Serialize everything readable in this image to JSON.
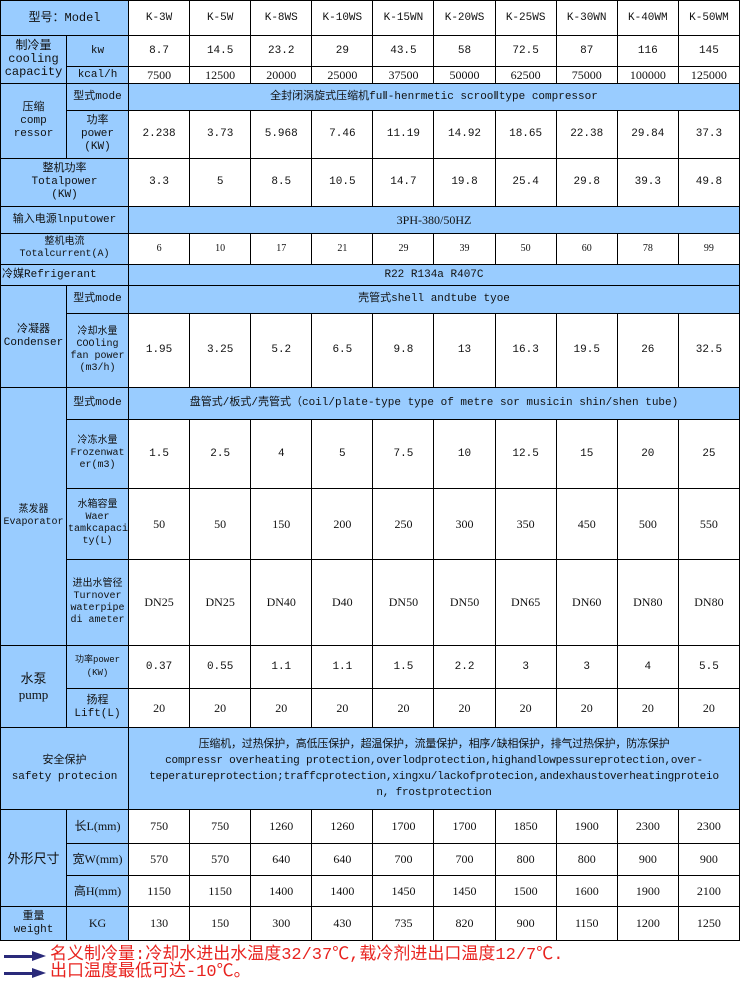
{
  "header": {
    "model_label": "型号：Model",
    "models": [
      "K-3W",
      "K-5W",
      "K-8WS",
      "K-10WS",
      "K-15WN",
      "K-20WS",
      "K-25WS",
      "K-30WN",
      "K-40WM",
      "K-50WM"
    ]
  },
  "cooling": {
    "label_cn": "制冷量",
    "label_en1": "cooling",
    "label_en2": "capacity",
    "kw_label": "kw",
    "kw": [
      "8.7",
      "14.5",
      "23.2",
      "29",
      "43.5",
      "58",
      "72.5",
      "87",
      "116",
      "145"
    ],
    "kcal_label": "kcal/h",
    "kcal": [
      "7500",
      "12500",
      "20000",
      "25000",
      "37500",
      "50000",
      "62500",
      "75000",
      "100000",
      "125000"
    ]
  },
  "compressor": {
    "label_cn": "压缩",
    "label_en1": "comp",
    "label_en2": "ressor",
    "mode_label": "型式mode",
    "mode_value": "全封闭涡旋式压缩机fuⅡ-henrmetic scrooⅡtype compressor",
    "power_label1": "功率",
    "power_label2": "power",
    "power_label3": "(KW)",
    "power": [
      "2.238",
      "3.73",
      "5.968",
      "7.46",
      "11.19",
      "14.92",
      "18.65",
      "22.38",
      "29.84",
      "37.3"
    ]
  },
  "total_power": {
    "label1": "整机功率",
    "label2": "Totalpower",
    "label3": "(KW)",
    "values": [
      "3.3",
      "5",
      "8.5",
      "10.5",
      "14.7",
      "19.8",
      "25.4",
      "29.8",
      "39.3",
      "49.8"
    ]
  },
  "input_power": {
    "label": "输入电源lnputower",
    "value": "3PH-380/50HZ"
  },
  "total_current": {
    "label1": "整机电流",
    "label2": "Totalcurrent(A)",
    "values": [
      "6",
      "10",
      "17",
      "21",
      "29",
      "39",
      "50",
      "60",
      "78",
      "99"
    ]
  },
  "refrigerant": {
    "label": "冷媒Refrigerant",
    "value": "R22 R134a R407C"
  },
  "condenser": {
    "label_cn": "冷凝器",
    "label_en": "Condenser",
    "mode_label": "型式mode",
    "mode_value": "壳管式shell andtube tyoe",
    "water_label1": "冷却水量",
    "water_label2": "COOling",
    "water_label3": "fan power",
    "water_label4": "(m3/h)",
    "water": [
      "1.95",
      "3.25",
      "5.2",
      "6.5",
      "9.8",
      "13",
      "16.3",
      "19.5",
      "26",
      "32.5"
    ]
  },
  "evaporator": {
    "label_cn": "蒸发器",
    "label_en": "Evaporator",
    "mode_label": "型式mode",
    "mode_value": "盘管式/板式/壳管式（coil/plate-type type of metre sor musicin shin/shen tube)",
    "frozen_label1": "冷冻水量",
    "frozen_label2": "Frozenwat",
    "frozen_label3": "er",
    "frozen_label4": "(m3)",
    "frozen": [
      "1.5",
      "2.5",
      "4",
      "5",
      "7.5",
      "10",
      "12.5",
      "15",
      "20",
      "25"
    ],
    "tank_label1": "水箱容量",
    "tank_label2": "Waer",
    "tank_label3": "tamkcapaci",
    "tank_label4": "ty(L)",
    "tank": [
      "50",
      "50",
      "150",
      "200",
      "250",
      "300",
      "350",
      "450",
      "500",
      "550"
    ],
    "pipe_label1": "进出水管径",
    "pipe_label2": "Turnover",
    "pipe_label3": "waterpipe",
    "pipe_label4": "di ameter",
    "pipe": [
      "DN25",
      "DN25",
      "DN40",
      "D40",
      "DN50",
      "DN50",
      "DN65",
      "DN60",
      "DN80",
      "DN80"
    ]
  },
  "pump": {
    "label_cn": "水泵",
    "label_en": "pump",
    "power_label1": "功率power",
    "power_label2": "(KW)",
    "power": [
      "0.37",
      "0.55",
      "1.1",
      "1.1",
      "1.5",
      "2.2",
      "3",
      "3",
      "4",
      "5.5"
    ],
    "lift_label1": "扬程",
    "lift_label2": "Lift(L)",
    "lift": [
      "20",
      "20",
      "20",
      "20",
      "20",
      "20",
      "20",
      "20",
      "20",
      "20"
    ]
  },
  "safety": {
    "label_cn": "安全保护",
    "label_en": "safety protecion",
    "line1": "压缩机，过热保护，高低压保护，超温保护，流量保护，相序/缺相保护，排气过热保护，防冻保护",
    "line2": "compressr overheating protection,overlodprotection,highandlowpessureprotection,over-",
    "line3": "teperatureprotection;traffcprotection,xingxu/lackofprotecion,andexhaustoverheatingproteio",
    "line4": "n,      frostprotection"
  },
  "dimensions": {
    "label": "外形尺寸",
    "length_label": "长L(mm)",
    "length": [
      "750",
      "750",
      "1260",
      "1260",
      "1700",
      "1700",
      "1850",
      "1900",
      "2300",
      "2300"
    ],
    "width_label": "宽W(mm)",
    "width": [
      "570",
      "570",
      "640",
      "640",
      "700",
      "700",
      "800",
      "800",
      "900",
      "900"
    ],
    "height_label": "高H(mm)",
    "height": [
      "1150",
      "1150",
      "1400",
      "1400",
      "1450",
      "1450",
      "1500",
      "1600",
      "1900",
      "2100"
    ]
  },
  "weight": {
    "label_cn": "重量",
    "label_en": "weight",
    "unit": "KG",
    "values": [
      "130",
      "150",
      "300",
      "430",
      "735",
      "820",
      "900",
      "1150",
      "1200",
      "1250"
    ]
  },
  "notes": [
    "名义制冷量:冷却水进出水温度32/37℃,载冷剂进出口温度12/7℃.",
    "出口温度最低可达-10℃。"
  ],
  "colors": {
    "header_bg": "#99ccff",
    "note_text": "#e8231f",
    "arrow": "#2a2a7a"
  }
}
